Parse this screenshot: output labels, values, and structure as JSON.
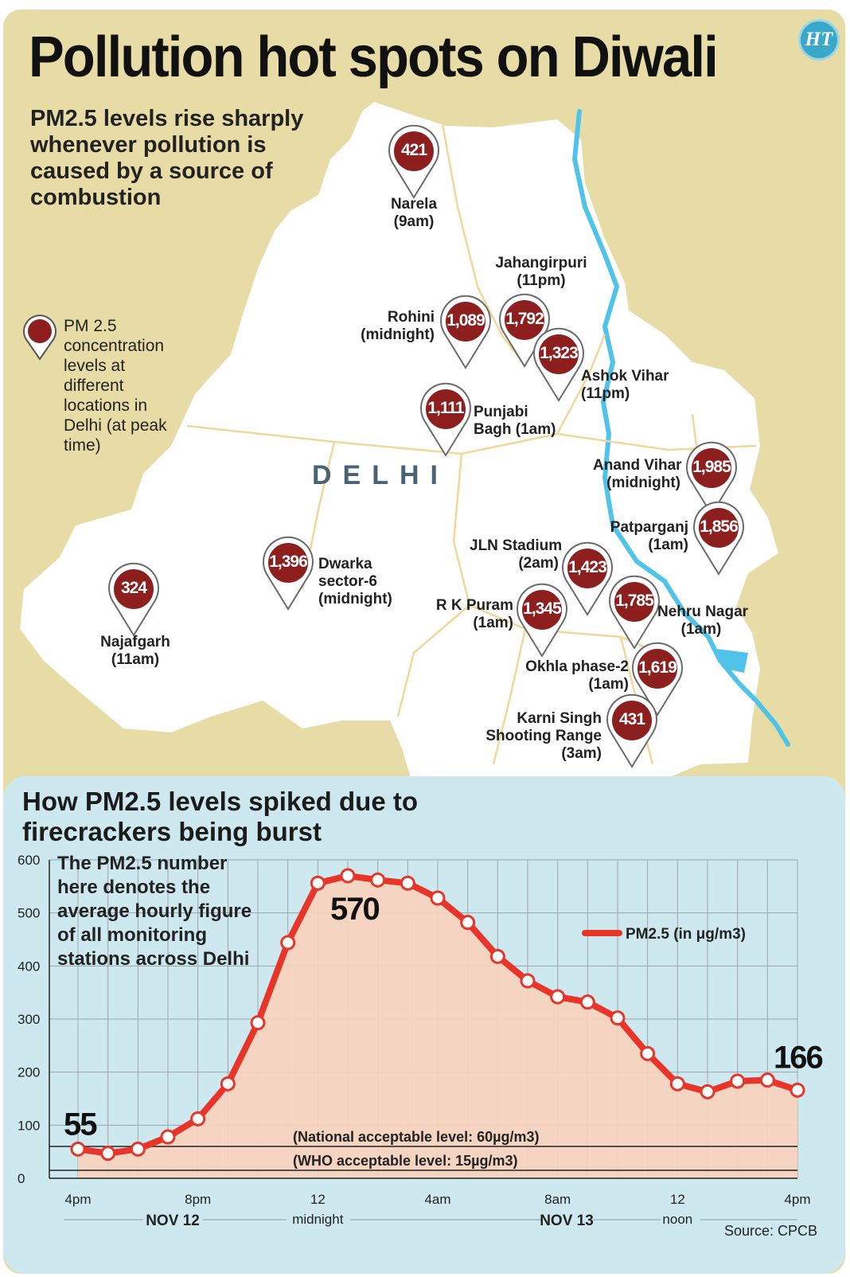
{
  "header": {
    "title": "Pollution hot spots on Diwali",
    "logo": "HT",
    "subtitle": "PM2.5 levels rise sharply whenever pollution is caused by a source of combustion"
  },
  "map": {
    "legend": "PM 2.5 concentration levels at different locations in Delhi (at peak time)",
    "region_label": "DELHI",
    "pin_color": "#8e1f1f",
    "river_color": "#4fc3e8",
    "locations": [
      {
        "value": "421",
        "name": "Narela",
        "time": "(9am)"
      },
      {
        "value": "1,089",
        "name": "Rohini",
        "time": "(midnight)"
      },
      {
        "value": "1,792",
        "name": "Jahangirpuri",
        "time": "(11pm)"
      },
      {
        "value": "1,323",
        "name": "Ashok Vihar",
        "time": "(11pm)"
      },
      {
        "value": "1,111",
        "name": "Punjabi",
        "time": "Bagh (1am)"
      },
      {
        "value": "1,985",
        "name": "Anand Vihar",
        "time": "(midnight)"
      },
      {
        "value": "1,856",
        "name": "Patparganj",
        "time": "(1am)"
      },
      {
        "value": "1,396",
        "name": "Dwarka",
        "name2": "sector-6",
        "time": "(midnight)"
      },
      {
        "value": "324",
        "name": "Najafgarh",
        "time": "(11am)"
      },
      {
        "value": "1,423",
        "name": "JLN Stadium",
        "time": "(2am)"
      },
      {
        "value": "1,345",
        "name": "R K Puram",
        "time": "(1am)"
      },
      {
        "value": "1,785",
        "name": "Nehru Nagar",
        "time": "(1am)"
      },
      {
        "value": "1,619",
        "name": "Okhla phase-2",
        "time": "(1am)"
      },
      {
        "value": "431",
        "name": "Karni Singh",
        "name2": "Shooting Range",
        "time": "(3am)"
      }
    ]
  },
  "chart_section": {
    "title": "How PM2.5 levels spiked due to firecrackers being burst",
    "note": "The PM2.5 number here denotes the average hourly figure of all monitoring stations across Delhi",
    "source": "Source: CPCB",
    "date_left": "NOV 12",
    "date_mid": "NOV 13"
  },
  "chart_data": {
    "type": "line",
    "ylim": [
      0,
      600
    ],
    "yticks": [
      0,
      100,
      200,
      300,
      400,
      500,
      600
    ],
    "xtick_labels": [
      "4pm",
      "8pm",
      "12",
      "4am",
      "8am",
      "12",
      "4pm"
    ],
    "xtick_sublabels": [
      "",
      "",
      "midnight",
      "",
      "",
      "noon",
      ""
    ],
    "series": [
      {
        "name": "PM2.5 (in μg/m3)",
        "color": "#e8352a",
        "x": [
          "4pm",
          "5pm",
          "6pm",
          "7pm",
          "8pm",
          "9pm",
          "10pm",
          "11pm",
          "12am",
          "1am",
          "2am",
          "3am",
          "4am",
          "5am",
          "6am",
          "7am",
          "8am",
          "9am",
          "10am",
          "11am",
          "12pm",
          "1pm",
          "2pm",
          "3pm",
          "4pm"
        ],
        "values": [
          55,
          47,
          55,
          78,
          112,
          178,
          293,
          444,
          556,
          570,
          562,
          556,
          528,
          482,
          418,
          372,
          342,
          332,
          302,
          235,
          178,
          163,
          183,
          185,
          166
        ]
      }
    ],
    "reference_lines": [
      {
        "label": "(National acceptable level: 60µg/m3)",
        "value": 60
      },
      {
        "label": "(WHO acceptable level: 15µg/m3)",
        "value": 15
      }
    ],
    "callouts": [
      {
        "label": "55",
        "index": 0
      },
      {
        "label": "570",
        "index": 9
      },
      {
        "label": "166",
        "index": 24
      }
    ]
  }
}
